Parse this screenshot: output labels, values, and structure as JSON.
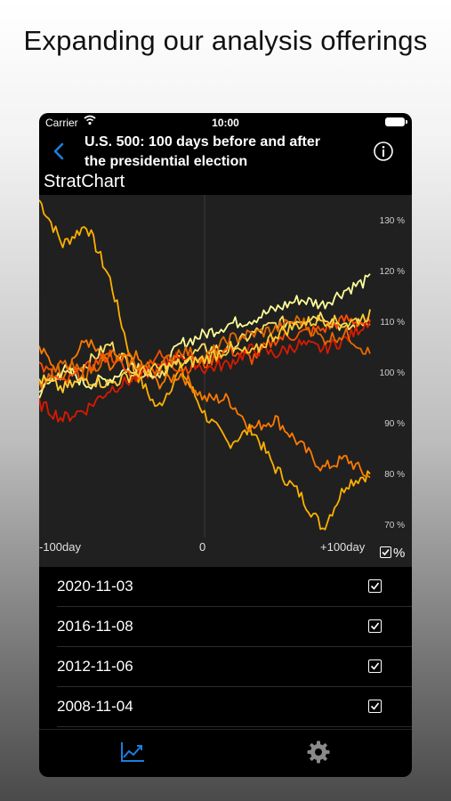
{
  "promo": {
    "title": "Expanding our analysis offerings"
  },
  "status_bar": {
    "carrier": "Carrier",
    "time": "10:00"
  },
  "nav": {
    "title_line1": "U.S. 500: 100 days before and after",
    "title_line2": "the presidential election",
    "back_icon": "chevron-left-icon",
    "info_icon": "info-circle-icon"
  },
  "app": {
    "name": "StratChart"
  },
  "chart": {
    "y_ticks": [
      "130 %",
      "120 %",
      "110 %",
      "100 %",
      "90 %",
      "80 %",
      "70 %"
    ],
    "x_ticks": [
      "-100day",
      "0",
      "+100day"
    ],
    "percent_toggle_label": "%"
  },
  "chart_data": {
    "type": "line",
    "x_range": [
      -100,
      100
    ],
    "ylim": [
      67,
      135
    ],
    "y_unit": "%",
    "series": [
      {
        "color": "#ffb000",
        "values": [
          134,
          125,
          129,
          118,
          100,
          92,
          100,
          91,
          85,
          88,
          80,
          75,
          68,
          77,
          79
        ]
      },
      {
        "color": "#ff7a00",
        "values": [
          104,
          99,
          106,
          100,
          103,
          97,
          99,
          94,
          94,
          88,
          90,
          85,
          80,
          82,
          78
        ]
      },
      {
        "color": "#ffff99",
        "values": [
          95,
          100,
          97,
          98,
          101,
          99,
          105,
          107,
          109,
          110,
          112,
          114,
          113,
          116,
          118
        ]
      },
      {
        "color": "#ffe066",
        "values": [
          96,
          99,
          101,
          105,
          100,
          99,
          102,
          104,
          104,
          107,
          109,
          110,
          111,
          108,
          110
        ]
      },
      {
        "color": "#ff4d00",
        "values": [
          101,
          97,
          100,
          103,
          98,
          103,
          100,
          101,
          104,
          102,
          106,
          107,
          108,
          110,
          109
        ]
      },
      {
        "color": "#d91a00",
        "values": [
          93,
          90,
          92,
          96,
          98,
          100,
          103,
          100,
          101,
          104,
          103,
          105,
          104,
          106,
          110
        ]
      },
      {
        "color": "#e56a00",
        "values": [
          97,
          101,
          99,
          103,
          101,
          100,
          104,
          102,
          106,
          107,
          108,
          110,
          106,
          107,
          103
        ]
      },
      {
        "color": "#ffcc33",
        "values": [
          98,
          96,
          98,
          97,
          99,
          100,
          101,
          102,
          104,
          103,
          107,
          109,
          110,
          109,
          111
        ]
      }
    ]
  },
  "elections": [
    {
      "date": "2020-11-03",
      "checked": true
    },
    {
      "date": "2016-11-08",
      "checked": true
    },
    {
      "date": "2012-11-06",
      "checked": true
    },
    {
      "date": "2008-11-04",
      "checked": true
    }
  ],
  "tabbar": {
    "chart_icon": "line-chart-icon",
    "settings_icon": "gear-icon",
    "active_color": "#1a7fe0"
  }
}
